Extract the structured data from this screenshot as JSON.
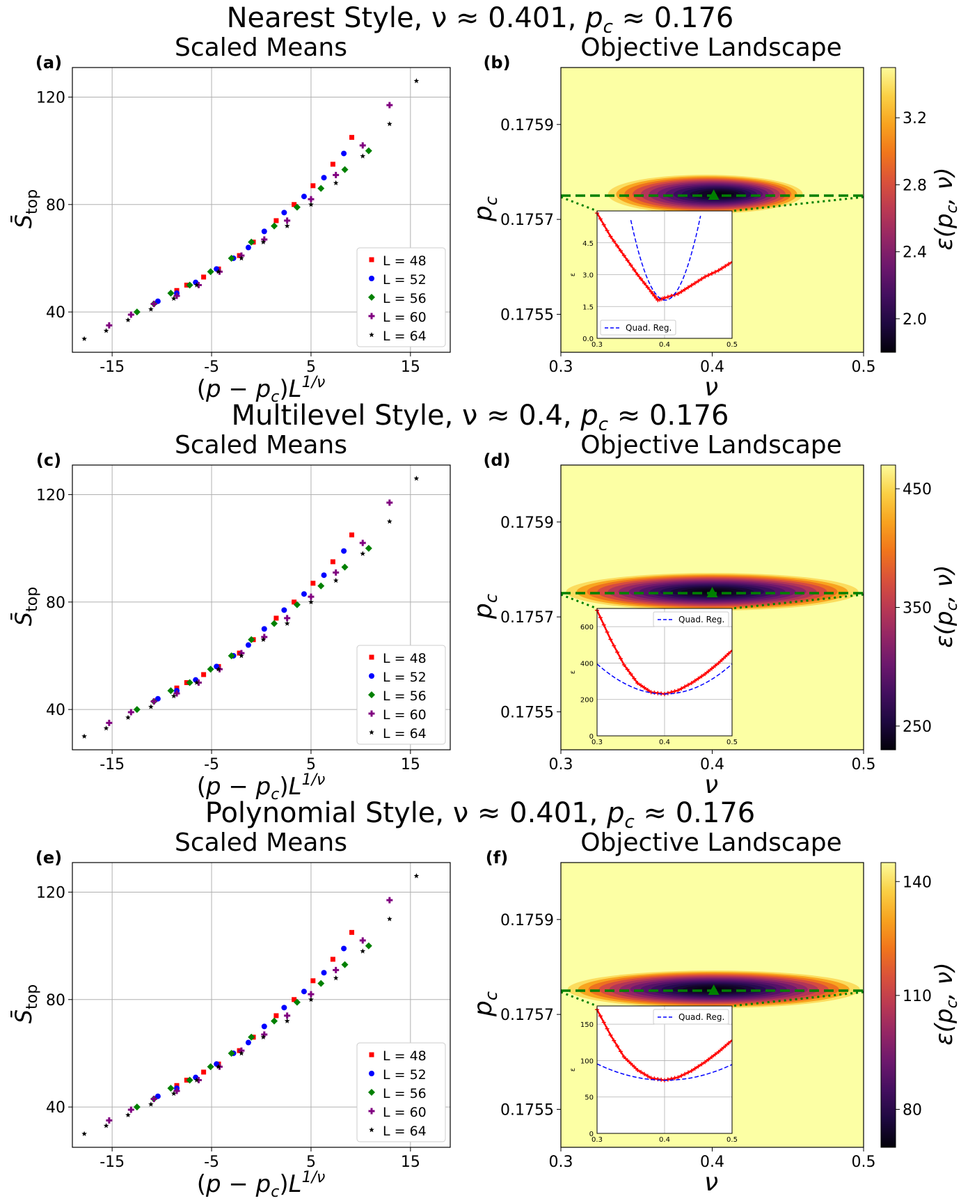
{
  "rows": [
    {
      "suptitle": "Nearest Style, ν ≈ 0.401, ",
      "suptitle_pc": "≈ 0.176",
      "left": {
        "label": "(a)",
        "title": "Scaled Means"
      },
      "right": {
        "label": "(b)",
        "title": "Objective Landscape"
      },
      "colorbar": {
        "ticks": [
          "3.2",
          "2.8",
          "2.4",
          "2.0"
        ],
        "label": "ε(p_c, ν)"
      },
      "inset": {
        "yticks": [
          "4.5",
          "3.0",
          "1.5",
          "0.0"
        ],
        "legend": "Quad. Reg.",
        "legend_pos": "lower-left"
      }
    },
    {
      "suptitle": "Multilevel Style, ν ≈ 0.4, ",
      "suptitle_pc": "≈ 0.176",
      "left": {
        "label": "(c)",
        "title": "Scaled Means"
      },
      "right": {
        "label": "(d)",
        "title": "Objective Landscape"
      },
      "colorbar": {
        "ticks": [
          "450",
          "350",
          "250"
        ],
        "label": "ε(p_c, ν)"
      },
      "inset": {
        "yticks": [
          "600",
          "400",
          "200",
          "0"
        ],
        "legend": "Quad. Reg.",
        "legend_pos": "top-right"
      }
    },
    {
      "suptitle": "Polynomial Style, ν ≈ 0.401, ",
      "suptitle_pc": "≈ 0.176",
      "left": {
        "label": "(e)",
        "title": "Scaled Means"
      },
      "right": {
        "label": "(f)",
        "title": "Objective Landscape"
      },
      "colorbar": {
        "ticks": [
          "140",
          "110",
          "80"
        ],
        "label": "ε(p_c, ν)"
      },
      "inset": {
        "yticks": [
          "150",
          "100",
          "50",
          "0"
        ],
        "legend": "Quad. Reg.",
        "legend_pos": "top-right"
      }
    }
  ],
  "scatter_axes": {
    "xticks": [
      "-15",
      "-5",
      "5",
      "15"
    ],
    "yticks": [
      "120",
      "80",
      "40"
    ],
    "xlabel": "(p − p_c)L^{1/ν}",
    "ylabel": "S̄_top"
  },
  "landscape_axes": {
    "xticks": [
      "0.3",
      "0.4",
      "0.5"
    ],
    "yticks": [
      "0.1759",
      "0.1757",
      "0.1755"
    ],
    "xlabel": "ν",
    "ylabel": "p_c"
  },
  "inset_xticks": [
    "0.3",
    "0.4",
    "0.5"
  ],
  "inset_ylabel": "ε",
  "legend": [
    {
      "label": "L = 48",
      "color": "#ff0000",
      "marker": "square"
    },
    {
      "label": "L = 52",
      "color": "#0000ff",
      "marker": "circle"
    },
    {
      "label": "L = 56",
      "color": "#008000",
      "marker": "diamond"
    },
    {
      "label": "L = 60",
      "color": "#800080",
      "marker": "plus"
    },
    {
      "label": "L = 64",
      "color": "#000000",
      "marker": "star"
    }
  ],
  "chart_data": [
    {
      "type": "scatter",
      "title": "Scaled Means",
      "xlabel": "(p - p_c)L^{1/ν}",
      "ylabel": "S_top",
      "xlim": [
        -19,
        19
      ],
      "ylim": [
        25,
        131
      ],
      "grid": true,
      "legend_position": "lower-right",
      "series": [
        {
          "name": "L = 48",
          "x": [
            -8.5,
            -7.5,
            -5.8,
            -4.3,
            -2.2,
            -0.8,
            1.5,
            3.3,
            5.2,
            7.2,
            9.1
          ],
          "y": [
            48,
            50,
            53,
            56,
            61,
            66,
            74,
            80,
            87,
            95,
            105
          ]
        },
        {
          "name": "L = 52",
          "x": [
            -10.4,
            -8.5,
            -6.6,
            -4.5,
            -2.8,
            -1.3,
            0.3,
            2.3,
            4.3,
            6.3,
            8.3
          ],
          "y": [
            44,
            47,
            51,
            56,
            60,
            64,
            70,
            77,
            83,
            90,
            99
          ]
        },
        {
          "name": "L = 56",
          "x": [
            -12.5,
            -10.8,
            -9.1,
            -7.2,
            -5.1,
            -3.0,
            -1.0,
            1.3,
            3.6,
            6.0,
            8.4,
            10.8
          ],
          "y": [
            40,
            43,
            47,
            50,
            55,
            60,
            66,
            72,
            79,
            86,
            93,
            100
          ]
        },
        {
          "name": "L = 60",
          "x": [
            -15.3,
            -13.1,
            -10.8,
            -8.5,
            -6.3,
            -4.2,
            -2.0,
            0.3,
            2.6,
            5.0,
            7.5,
            10.2,
            12.9
          ],
          "y": [
            35,
            39,
            43,
            46,
            50,
            55,
            61,
            67,
            74,
            82,
            91,
            102,
            117
          ]
        },
        {
          "name": "L = 64",
          "x": [
            -17.8,
            -15.6,
            -13.4,
            -11.1,
            -8.8,
            -6.5,
            -4.3,
            -2.0,
            0.2,
            2.6,
            5.0,
            7.5,
            10.2,
            12.9,
            15.6
          ],
          "y": [
            30,
            33,
            37,
            41,
            45,
            50,
            55,
            60,
            66,
            72,
            80,
            88,
            98,
            110,
            126
          ]
        }
      ]
    },
    {
      "type": "heatmap",
      "title": "Objective Landscape",
      "xlabel": "ν",
      "ylabel": "p_c",
      "xlim": [
        0.3,
        0.5
      ],
      "ylim": [
        0.17542,
        0.17602
      ],
      "minimum": {
        "nu": 0.401,
        "pc": 0.17575
      },
      "colorbar": {
        "label": "ε(p_c, ν)",
        "range": [
          1.8,
          3.5
        ]
      },
      "inset": {
        "x": [
          0.3,
          0.32,
          0.34,
          0.36,
          0.38,
          0.39,
          0.4,
          0.42,
          0.44,
          0.46,
          0.48,
          0.5
        ],
        "y_data": [
          5.9,
          4.8,
          3.9,
          3.0,
          2.2,
          1.8,
          1.9,
          2.1,
          2.5,
          2.9,
          3.2,
          3.6
        ],
        "ylim": [
          0,
          6.0
        ]
      }
    },
    {
      "type": "heatmap",
      "title": "Objective Landscape",
      "xlabel": "ν",
      "ylabel": "p_c",
      "xlim": [
        0.3,
        0.5
      ],
      "ylim": [
        0.17542,
        0.17602
      ],
      "minimum": {
        "nu": 0.4,
        "pc": 0.17575
      },
      "colorbar": {
        "label": "ε(p_c, ν)",
        "range": [
          230,
          470
        ]
      },
      "inset": {
        "x": [
          0.3,
          0.32,
          0.34,
          0.36,
          0.38,
          0.4,
          0.42,
          0.44,
          0.46,
          0.48,
          0.5
        ],
        "y_data": [
          690,
          530,
          390,
          290,
          240,
          230,
          250,
          290,
          340,
          400,
          470
        ],
        "ylim": [
          0,
          700
        ]
      }
    },
    {
      "type": "heatmap",
      "title": "Objective Landscape",
      "xlabel": "ν",
      "ylabel": "p_c",
      "xlim": [
        0.3,
        0.5
      ],
      "ylim": [
        0.17542,
        0.17602
      ],
      "minimum": {
        "nu": 0.401,
        "pc": 0.17575
      },
      "colorbar": {
        "label": "ε(p_c, ν)",
        "range": [
          70,
          145
        ]
      },
      "inset": {
        "x": [
          0.3,
          0.32,
          0.34,
          0.36,
          0.38,
          0.4,
          0.42,
          0.44,
          0.46,
          0.48,
          0.5
        ],
        "y_data": [
          170,
          135,
          105,
          87,
          76,
          73,
          77,
          86,
          98,
          112,
          128
        ],
        "ylim": [
          0,
          175
        ]
      }
    }
  ]
}
